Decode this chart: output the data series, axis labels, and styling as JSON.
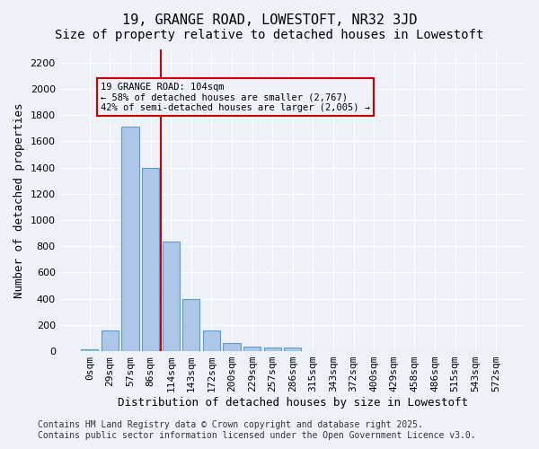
{
  "title1": "19, GRANGE ROAD, LOWESTOFT, NR32 3JD",
  "title2": "Size of property relative to detached houses in Lowestoft",
  "xlabel": "Distribution of detached houses by size in Lowestoft",
  "ylabel": "Number of detached properties",
  "categories": [
    "0sqm",
    "29sqm",
    "57sqm",
    "86sqm",
    "114sqm",
    "143sqm",
    "172sqm",
    "200sqm",
    "229sqm",
    "257sqm",
    "286sqm",
    "315sqm",
    "343sqm",
    "372sqm",
    "400sqm",
    "429sqm",
    "458sqm",
    "486sqm",
    "515sqm",
    "543sqm",
    "572sqm"
  ],
  "values": [
    15,
    155,
    1710,
    1400,
    835,
    400,
    160,
    65,
    35,
    25,
    25,
    0,
    0,
    0,
    0,
    0,
    0,
    0,
    0,
    0,
    0
  ],
  "bar_color": "#aec6e8",
  "bar_edge_color": "#5b9bd5",
  "vline_x": 3.5,
  "vline_color": "#cc0000",
  "annotation_text": "19 GRANGE ROAD: 104sqm\n← 58% of detached houses are smaller (2,767)\n42% of semi-detached houses are larger (2,005) →",
  "annotation_box_color": "#cc0000",
  "annotation_text_color": "#000000",
  "ylim": [
    0,
    2300
  ],
  "yticks": [
    0,
    200,
    400,
    600,
    800,
    1000,
    1200,
    1400,
    1600,
    1800,
    2000,
    2200
  ],
  "bg_color": "#eef2f8",
  "grid_color": "#ffffff",
  "footer": "Contains HM Land Registry data © Crown copyright and database right 2025.\nContains public sector information licensed under the Open Government Licence v3.0.",
  "title1_fontsize": 11,
  "title2_fontsize": 10,
  "xlabel_fontsize": 9,
  "ylabel_fontsize": 9,
  "tick_fontsize": 8,
  "footer_fontsize": 7
}
